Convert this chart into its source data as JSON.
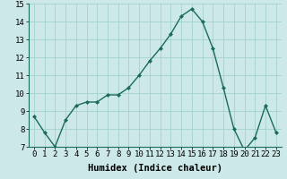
{
  "x": [
    0,
    1,
    2,
    3,
    4,
    5,
    6,
    7,
    8,
    9,
    10,
    11,
    12,
    13,
    14,
    15,
    16,
    17,
    18,
    19,
    20,
    21,
    22,
    23
  ],
  "y": [
    8.7,
    7.8,
    7.0,
    8.5,
    9.3,
    9.5,
    9.5,
    9.9,
    9.9,
    10.3,
    11.0,
    11.8,
    12.5,
    13.3,
    14.3,
    14.7,
    14.0,
    12.5,
    10.3,
    8.0,
    6.8,
    7.5,
    9.3,
    7.8
  ],
  "xlabel": "Humidex (Indice chaleur)",
  "ylim": [
    7,
    15
  ],
  "xlim_min": -0.5,
  "xlim_max": 23.5,
  "yticks": [
    7,
    8,
    9,
    10,
    11,
    12,
    13,
    14,
    15
  ],
  "xticks": [
    0,
    1,
    2,
    3,
    4,
    5,
    6,
    7,
    8,
    9,
    10,
    11,
    12,
    13,
    14,
    15,
    16,
    17,
    18,
    19,
    20,
    21,
    22,
    23
  ],
  "line_color": "#1a6b5a",
  "marker_color": "#1a6b5a",
  "bg_color": "#cce8e8",
  "grid_color": "#9ecece",
  "xlabel_fontsize": 7.5,
  "tick_fontsize": 6.5,
  "linewidth": 1.0,
  "markersize": 2.0
}
